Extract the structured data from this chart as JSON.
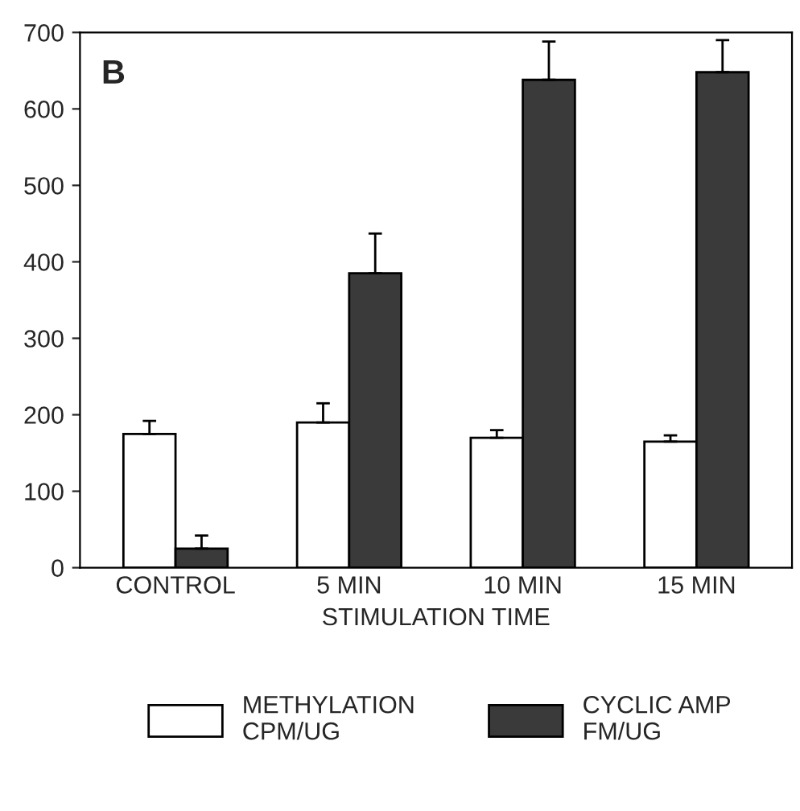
{
  "chart_data": {
    "type": "bar",
    "xlabel": "STIMULATION TIME",
    "annotations": [
      "B"
    ],
    "categories": [
      "CONTROL",
      "5 MIN",
      "10 MIN",
      "15 MIN"
    ],
    "series": [
      {
        "name": "METHYLATION\nCPM/UG",
        "color": "#ffffff",
        "values": [
          175,
          190,
          170,
          165
        ],
        "errors": [
          [
            175,
            192
          ],
          [
            190,
            215
          ],
          [
            170,
            180
          ],
          [
            165,
            173
          ]
        ]
      },
      {
        "name": "CYCLIC AMP\nFM/UG",
        "color": "#3a3a3a",
        "values": [
          25,
          385,
          638,
          648
        ],
        "errors": [
          [
            25,
            42
          ],
          [
            385,
            437
          ],
          [
            638,
            688
          ],
          [
            648,
            690
          ]
        ]
      }
    ],
    "ylim": [
      0,
      700
    ],
    "yticks": [
      0,
      100,
      200,
      300,
      400,
      500,
      600,
      700
    ],
    "grid": false,
    "legend": "bottom"
  }
}
